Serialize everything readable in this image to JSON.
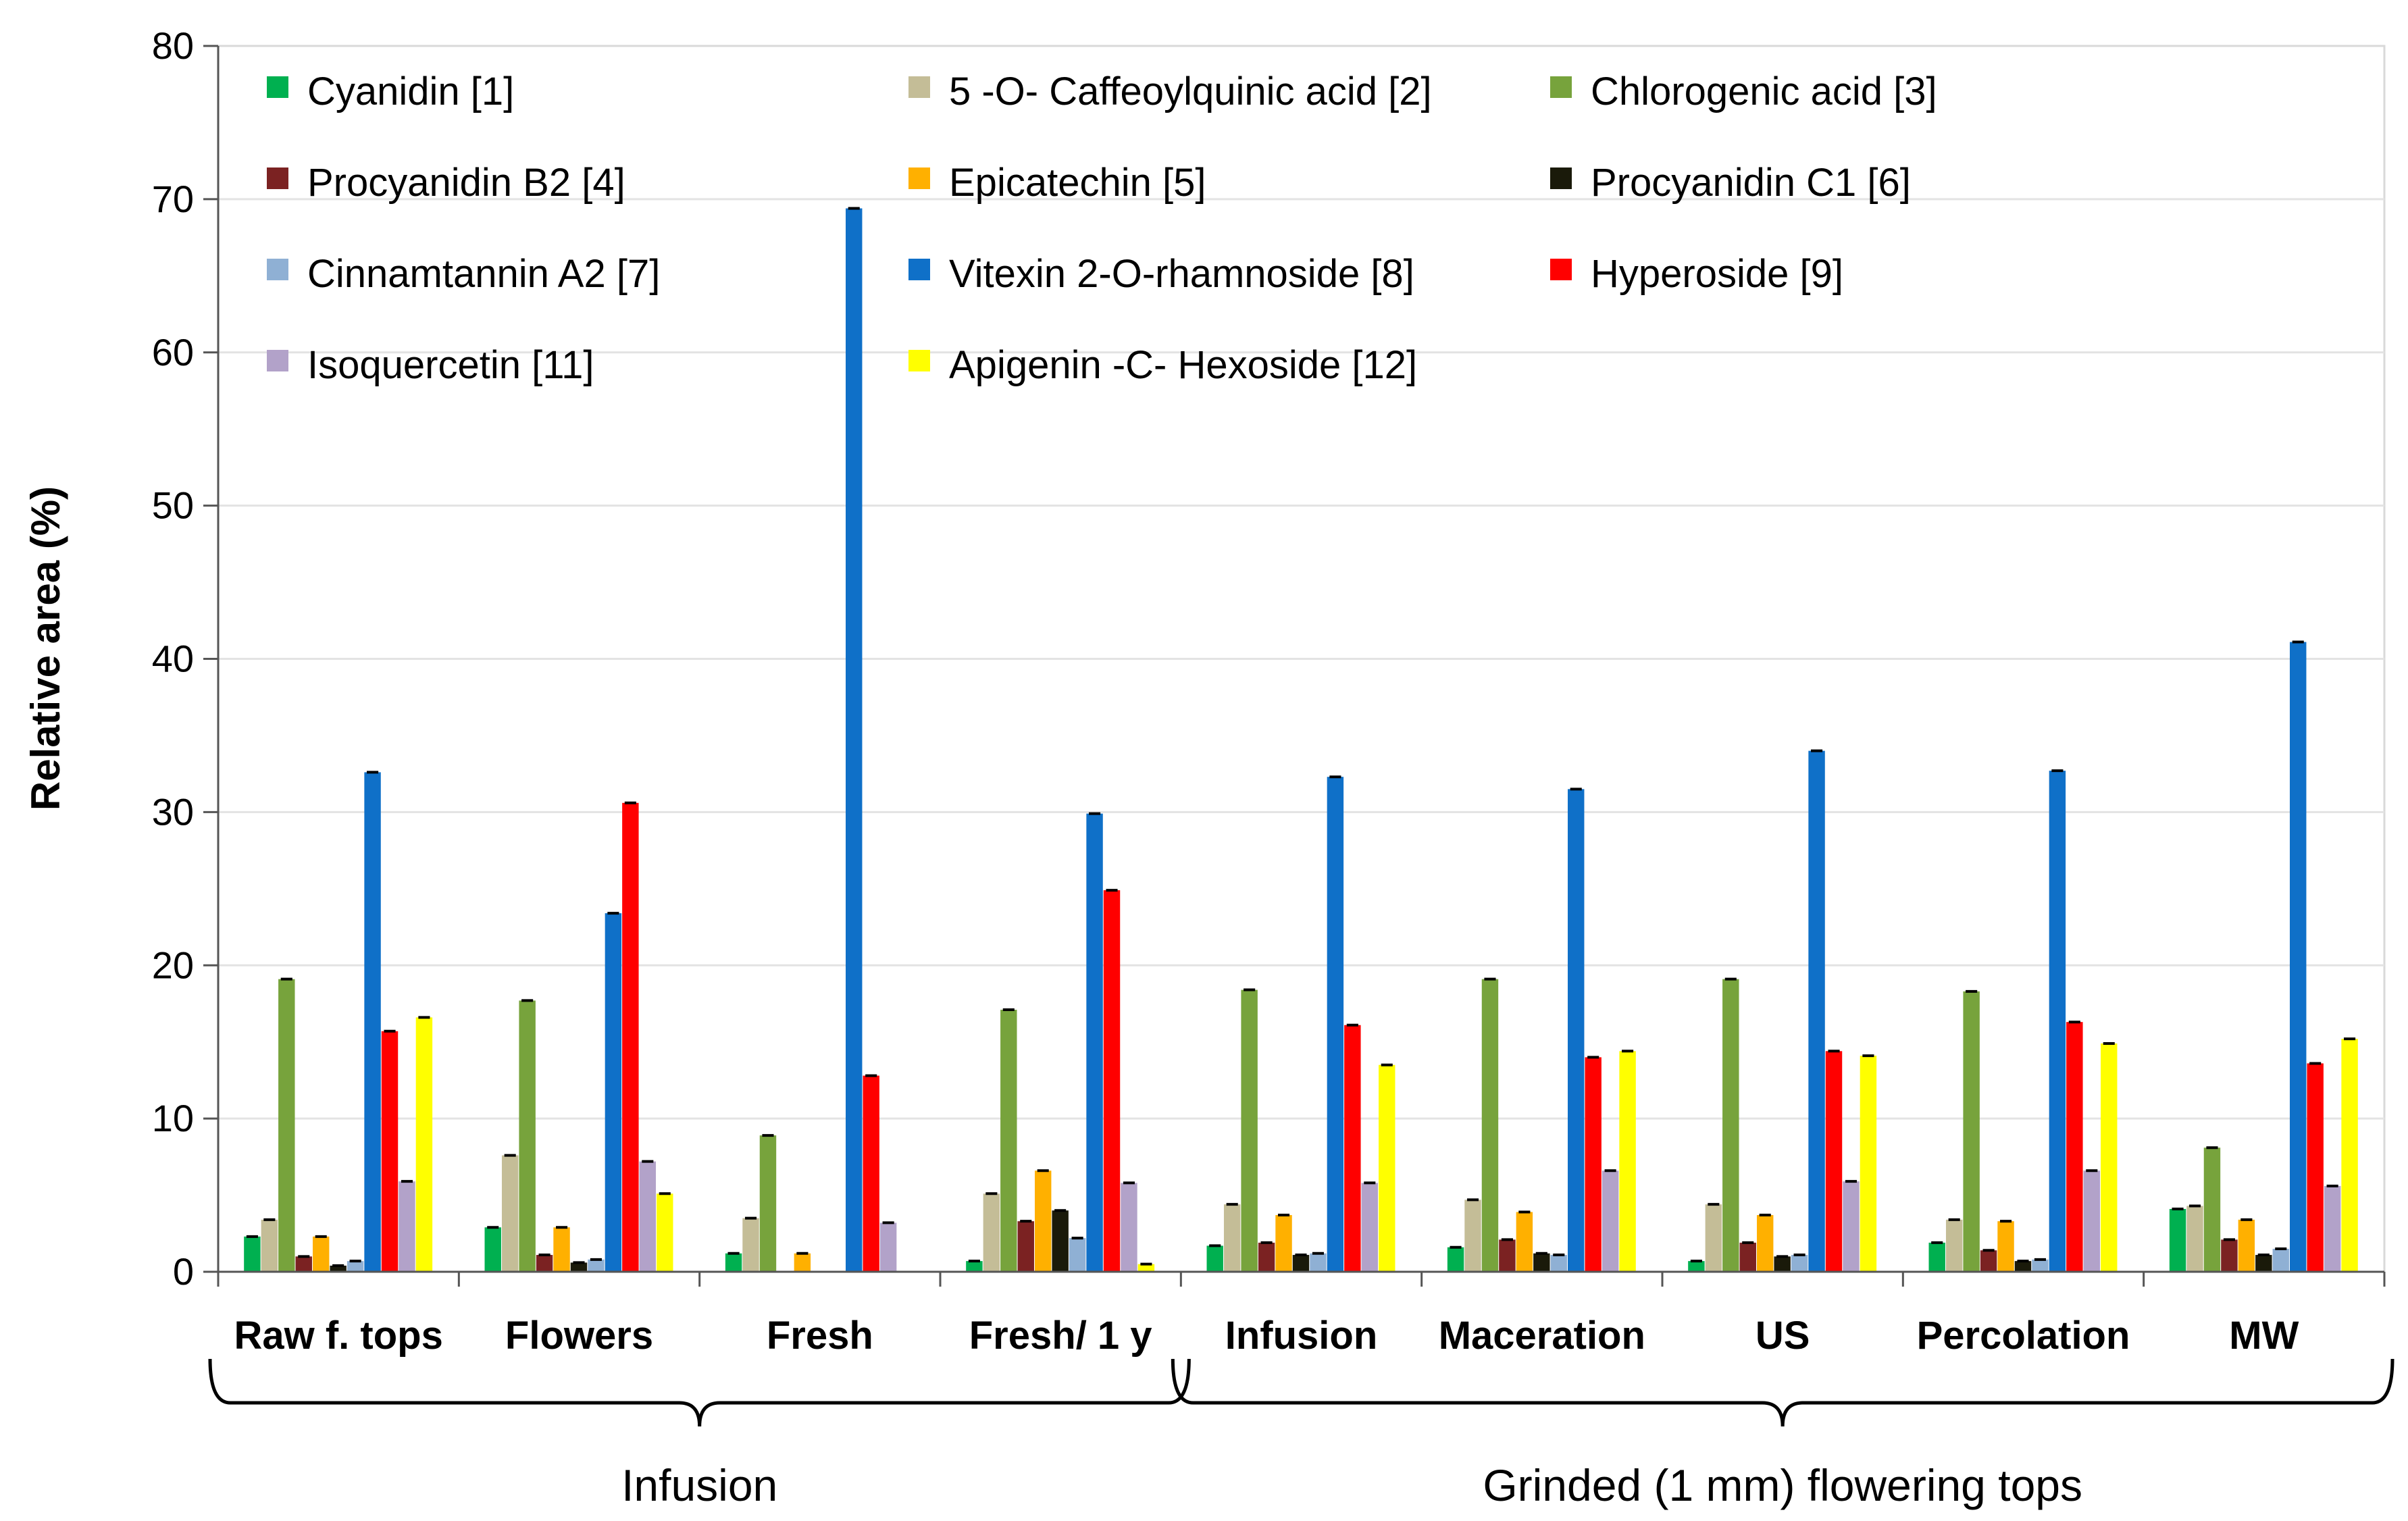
{
  "chart_data": {
    "type": "bar",
    "title": "",
    "xlabel": "",
    "ylabel": "Relative area (%)",
    "ylim": [
      0,
      80
    ],
    "yticks": [
      0,
      10,
      20,
      30,
      40,
      50,
      60,
      70,
      80
    ],
    "grid": true,
    "legend_position": "top-left, inside plot",
    "categories": [
      "Raw f. tops",
      "Flowers",
      "Fresh",
      "Fresh/ 1 y",
      "Infusion",
      "Maceration",
      "US",
      "Percolation",
      "MW"
    ],
    "category_groups": [
      {
        "label": "Infusion",
        "start": 0,
        "end": 3
      },
      {
        "label": "Grinded (1 mm) flowering tops",
        "start": 4,
        "end": 8
      }
    ],
    "series": [
      {
        "name": "Cyanidin [1]",
        "color": "#00b050",
        "values": [
          2.3,
          2.9,
          1.2,
          0.7,
          1.7,
          1.6,
          0.7,
          1.9,
          4.1
        ]
      },
      {
        "name": "5 -O- Caffeoylquinic acid [2]",
        "color": "#c4bd97",
        "values": [
          3.4,
          7.6,
          3.5,
          5.1,
          4.4,
          4.7,
          4.4,
          3.4,
          4.3
        ]
      },
      {
        "name": "Chlorogenic acid [3]",
        "color": "#77a33c",
        "values": [
          19.1,
          17.7,
          8.9,
          17.1,
          18.4,
          19.1,
          19.1,
          18.3,
          8.1
        ]
      },
      {
        "name": "Procyanidin B2 [4]",
        "color": "#7b2222",
        "values": [
          1.0,
          1.1,
          0,
          3.3,
          1.9,
          2.1,
          1.9,
          1.4,
          2.1
        ]
      },
      {
        "name": "Epicatechin [5]",
        "color": "#ffb000",
        "values": [
          2.3,
          2.9,
          1.2,
          6.6,
          3.7,
          3.9,
          3.7,
          3.3,
          3.4
        ]
      },
      {
        "name": "Procyanidin C1 [6]",
        "color": "#1a1a0a",
        "values": [
          0.4,
          0.6,
          0,
          4.0,
          1.1,
          1.2,
          1.0,
          0.7,
          1.1
        ]
      },
      {
        "name": "Cinnamtannin A2 [7]",
        "color": "#8fb0d4",
        "values": [
          0.7,
          0.8,
          0,
          2.2,
          1.2,
          1.1,
          1.1,
          0.8,
          1.5
        ]
      },
      {
        "name": "Vitexin 2-O-rhamnoside [8]",
        "color": "#0f70c8",
        "values": [
          32.6,
          23.4,
          69.4,
          29.9,
          32.3,
          31.5,
          34.0,
          32.7,
          41.1
        ]
      },
      {
        "name": "Hyperoside [9]",
        "color": "#ff0000",
        "values": [
          15.7,
          30.6,
          12.8,
          24.9,
          16.1,
          14.0,
          14.4,
          16.3,
          13.6
        ]
      },
      {
        "name": "Isoquercetin [11]",
        "color": "#b2a2c9",
        "values": [
          5.9,
          7.2,
          3.2,
          5.8,
          5.8,
          6.6,
          5.9,
          6.6,
          5.6
        ]
      },
      {
        "name": "Apigenin -C- Hexoside [12]",
        "color": "#ffff00",
        "values": [
          16.6,
          5.1,
          0,
          0.5,
          13.5,
          14.4,
          14.1,
          14.9,
          15.2
        ]
      }
    ]
  }
}
